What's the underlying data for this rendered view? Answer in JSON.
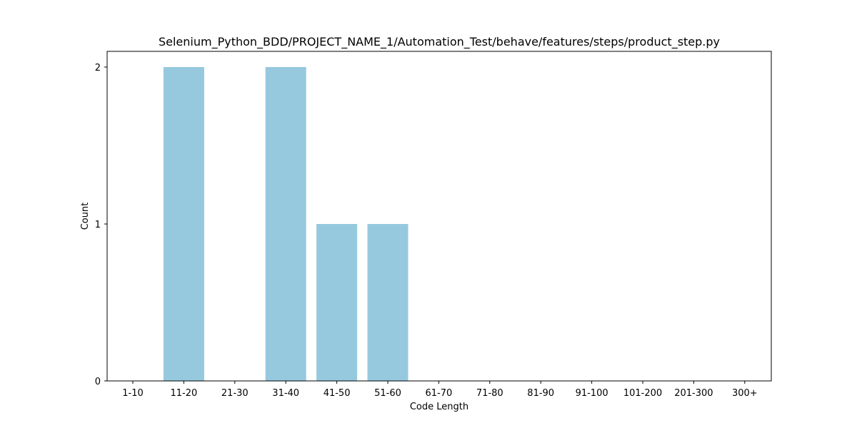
{
  "chart_data": {
    "type": "bar",
    "title": "Selenium_Python_BDD/PROJECT_NAME_1/Automation_Test/behave/features/steps/product_step.py",
    "xlabel": "Code Length",
    "ylabel": "Count",
    "categories": [
      "1-10",
      "11-20",
      "21-30",
      "31-40",
      "41-50",
      "51-60",
      "61-70",
      "71-80",
      "81-90",
      "91-100",
      "101-200",
      "201-300",
      "300+"
    ],
    "values": [
      0,
      2,
      0,
      2,
      1,
      1,
      0,
      0,
      0,
      0,
      0,
      0,
      0
    ],
    "ylim": [
      0,
      2.1
    ],
    "yticks": [
      0,
      1,
      2
    ],
    "bar_color": "#96c9de",
    "grid": false,
    "legend": "none"
  }
}
